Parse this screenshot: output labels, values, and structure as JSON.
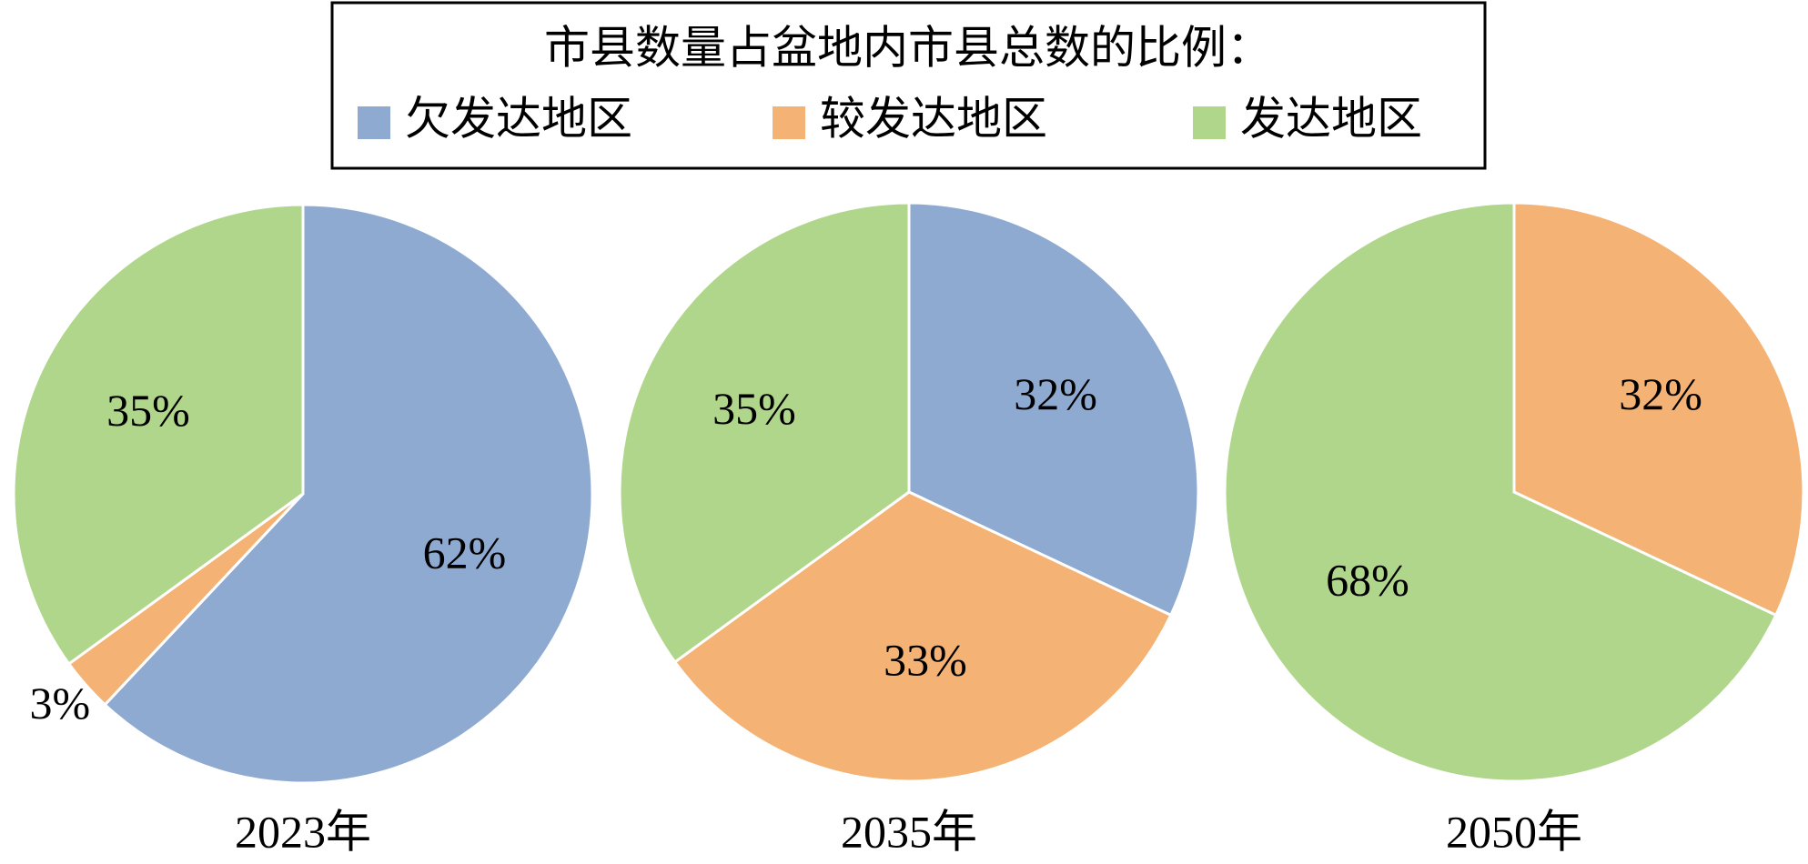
{
  "legend": {
    "title": "市县数量占盆地内市县总数的比例：",
    "labels": [
      "欠发达地区",
      "较发达地区",
      "发达地区"
    ],
    "colors": [
      "#8eaad1",
      "#f4b274",
      "#b0d68b"
    ]
  },
  "chart_data": [
    {
      "type": "pie",
      "title": "2023年",
      "values": [
        62,
        3,
        35
      ],
      "value_labels": [
        "62%",
        "3%",
        "35%"
      ]
    },
    {
      "type": "pie",
      "title": "2035年",
      "values": [
        32,
        33,
        35
      ],
      "value_labels": [
        "32%",
        "33%",
        "35%"
      ]
    },
    {
      "type": "pie",
      "title": "2050年",
      "values": [
        null,
        32,
        68
      ],
      "value_labels": [
        null,
        "32%",
        "68%"
      ]
    }
  ]
}
